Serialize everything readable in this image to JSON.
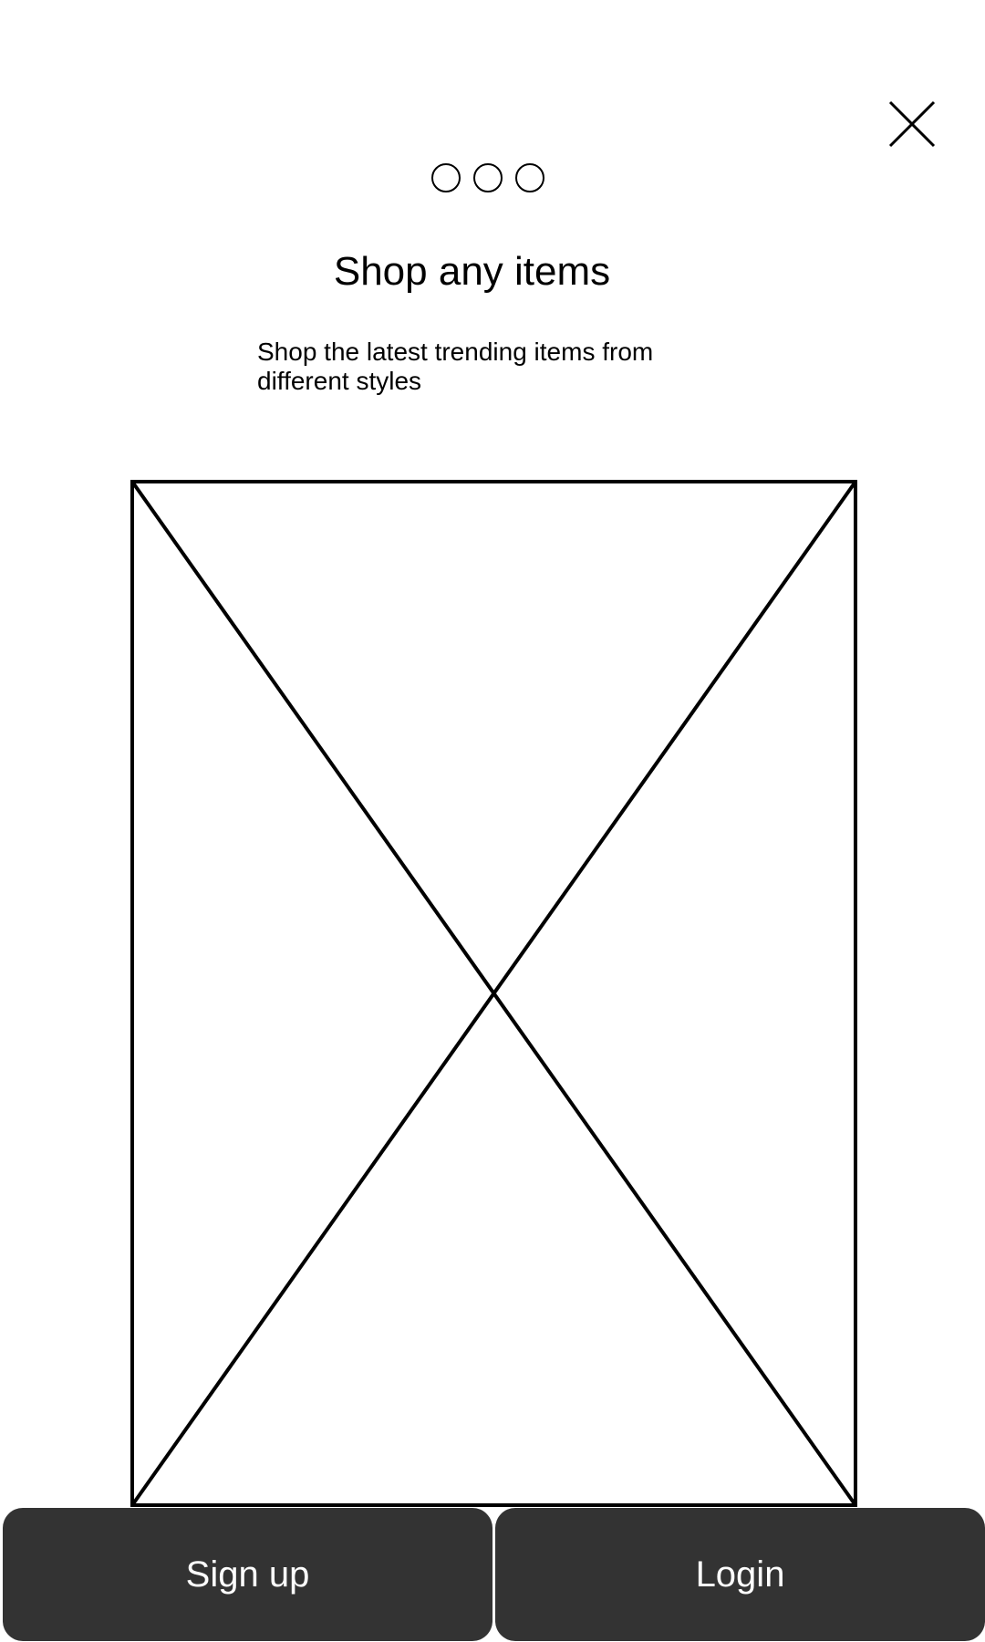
{
  "close": {
    "icon": "close-icon"
  },
  "pager": {
    "count": 3,
    "icon": "circle-outline"
  },
  "onboarding": {
    "title": "Shop any items",
    "subtitle": "Shop the latest trending items from different styles"
  },
  "image": {
    "icon": "image-placeholder"
  },
  "actions": {
    "signup_label": "Sign up",
    "login_label": "Login"
  },
  "colors": {
    "button_bg": "#333333",
    "button_text": "#ffffff",
    "background": "#ffffff",
    "stroke": "#000000"
  }
}
